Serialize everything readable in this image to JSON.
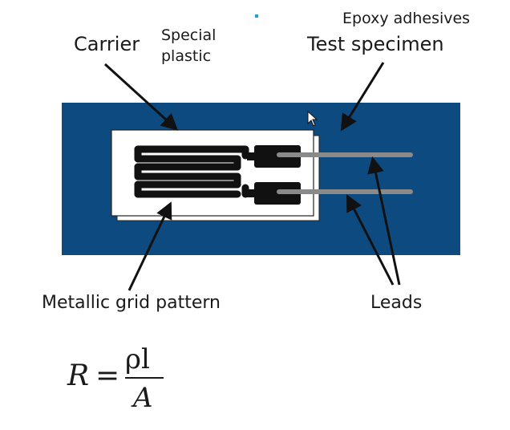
{
  "labels": {
    "carrier": "Carrier",
    "special_plastic": "Special\nplastic",
    "epoxy": "Epoxy adhesives",
    "test_specimen": "Test specimen",
    "metallic_grid": "Metallic grid pattern",
    "leads": "Leads"
  },
  "formula": {
    "lhs": "R",
    "equals": "=",
    "numerator": "ρl",
    "denominator": "A"
  },
  "colors": {
    "specimen": "#0d4a80",
    "carrier": "#ffffff",
    "grid": "#111111",
    "leads": "#8a8a8a",
    "accent_dot": "#29a0dc"
  },
  "icons": [
    "mouse-cursor-icon"
  ]
}
